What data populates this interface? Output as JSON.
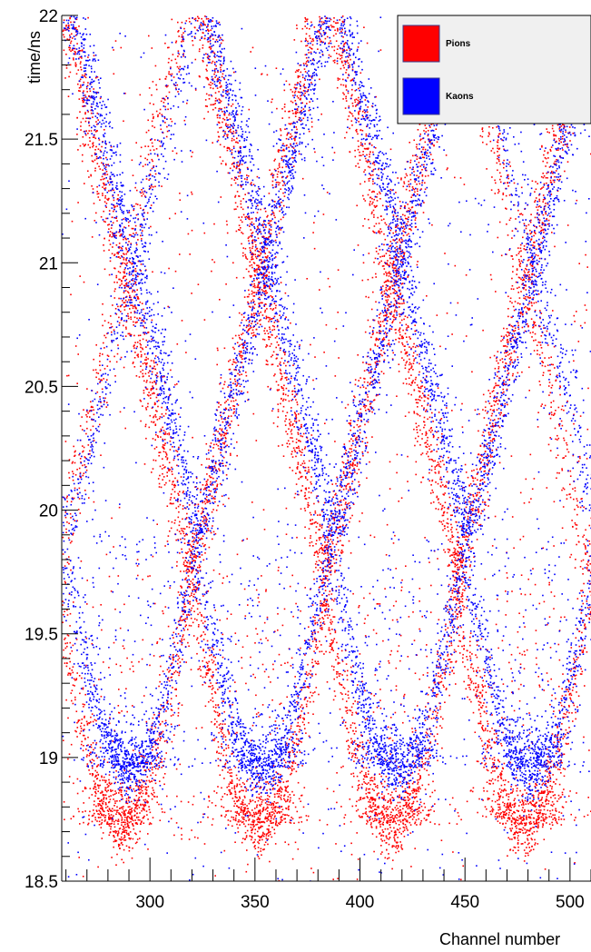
{
  "chart_data": {
    "type": "scatter",
    "title": "",
    "xlabel": "Channel number",
    "ylabel": "time/ns",
    "xlim": [
      258,
      510
    ],
    "ylim": [
      18.5,
      22
    ],
    "x_ticks": [
      300,
      350,
      400,
      450,
      500
    ],
    "y_ticks": [
      18.5,
      19,
      19.5,
      20,
      20.5,
      21,
      21.5,
      22
    ],
    "x_tick_labels": [
      "300",
      "350",
      "400",
      "450",
      "500"
    ],
    "y_tick_labels": [
      "18.5",
      "19",
      "19.5",
      "20",
      "20.5",
      "21",
      "21.5",
      "22"
    ],
    "grid": false,
    "legend_position": "top-right",
    "series": [
      {
        "name": "Pions",
        "color": "#ff0000",
        "pattern": {
          "module_centers": [
            287,
            352,
            415,
            478
          ],
          "ring_bottom_time": 18.75,
          "ring_crossing_time": 19.75,
          "band_crossing_times": [
            20.8,
            21.8
          ]
        }
      },
      {
        "name": "Kaons",
        "color": "#0000ff",
        "pattern": {
          "module_centers": [
            290,
            353,
            418,
            481
          ],
          "ring_bottom_time": 18.98,
          "ring_crossing_time": 19.9,
          "band_crossing_times": [
            20.85,
            21.95
          ]
        }
      }
    ]
  }
}
